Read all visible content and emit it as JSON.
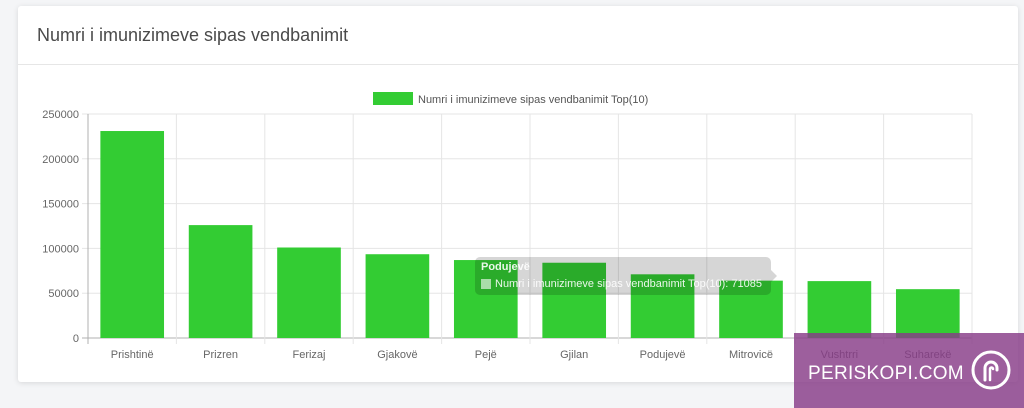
{
  "card": {
    "title": "Numri i imunizimeve sipas vendbanimit"
  },
  "chart_data": {
    "type": "bar",
    "legend": {
      "label": "Numri i imunizimeve sipas vendbanimit Top(10)",
      "color": "#33cc33",
      "placement": "top-center"
    },
    "categories": [
      "Prishtinë",
      "Prizren",
      "Ferizaj",
      "Gjakovë",
      "Pejë",
      "Gjilan",
      "Podujevë",
      "Mitrovicë",
      "Vushtrri",
      "Suharekë"
    ],
    "series": [
      {
        "name": "Numri i imunizimeve sipas vendbanimit Top(10)",
        "values": [
          231000,
          126000,
          101000,
          93500,
          87000,
          84000,
          71085,
          64000,
          63500,
          54500
        ],
        "color": "#33cc33"
      }
    ],
    "ylim": [
      0,
      250000
    ],
    "yticks": [
      0,
      50000,
      100000,
      150000,
      200000,
      250000
    ],
    "grid": true
  },
  "tooltip": {
    "title": "Podujevë",
    "text": "Numri i imunizimeve sipas vendbanimit Top(10): 71085"
  },
  "watermark": {
    "text": "PERISKOPI.COM",
    "color": "#873c87"
  }
}
